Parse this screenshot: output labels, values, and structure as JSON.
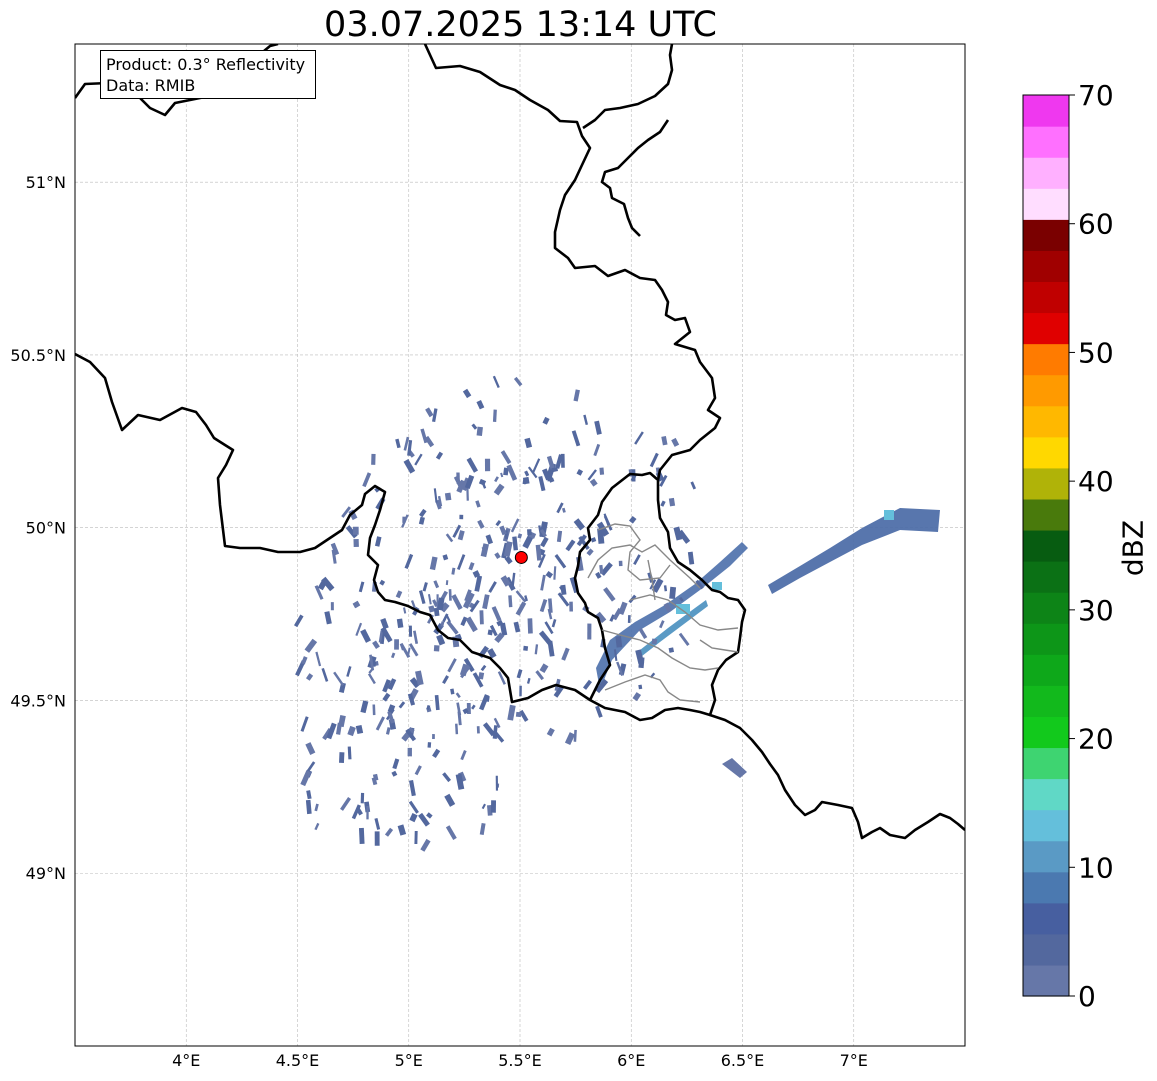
{
  "title": "03.07.2025 13:14 UTC",
  "product_box": {
    "line1": "Product: 0.3° Reflectivity",
    "line2": "Data: RMIB"
  },
  "map": {
    "lon_range": [
      3.5,
      7.5
    ],
    "lat_range": [
      48.5,
      51.4
    ],
    "x_ticks": [
      "4°E",
      "4.5°E",
      "5°E",
      "5.5°E",
      "6°E",
      "6.5°E",
      "7°E"
    ],
    "y_ticks": [
      "49°N",
      "49.5°N",
      "50°N",
      "50.5°N",
      "51°N"
    ],
    "grid": true,
    "radar_site": {
      "lon": 5.506,
      "lat": 49.914,
      "marker_color": "#ff0000"
    }
  },
  "colorbar": {
    "label": "dBZ",
    "range": [
      0,
      70
    ],
    "ticks": [
      "0",
      "10",
      "20",
      "30",
      "40",
      "50",
      "60",
      "70"
    ],
    "colors": [
      "#6677a8",
      "#53689e",
      "#475fa0",
      "#4b79b0",
      "#5a9ac5",
      "#64bfdb",
      "#60d8c6",
      "#3ed471",
      "#12c91c",
      "#12b91c",
      "#0ea81a",
      "#0d9618",
      "#0d8417",
      "#0b7115",
      "#075c11",
      "#497a0c",
      "#b0b308",
      "#ffd800",
      "#ffb800",
      "#ff9a00",
      "#ff7b00",
      "#e00000",
      "#c00000",
      "#a00000",
      "#7a0000",
      "#ffddff",
      "#ffb0ff",
      "#ff70ff",
      "#ef38ef"
    ]
  }
}
